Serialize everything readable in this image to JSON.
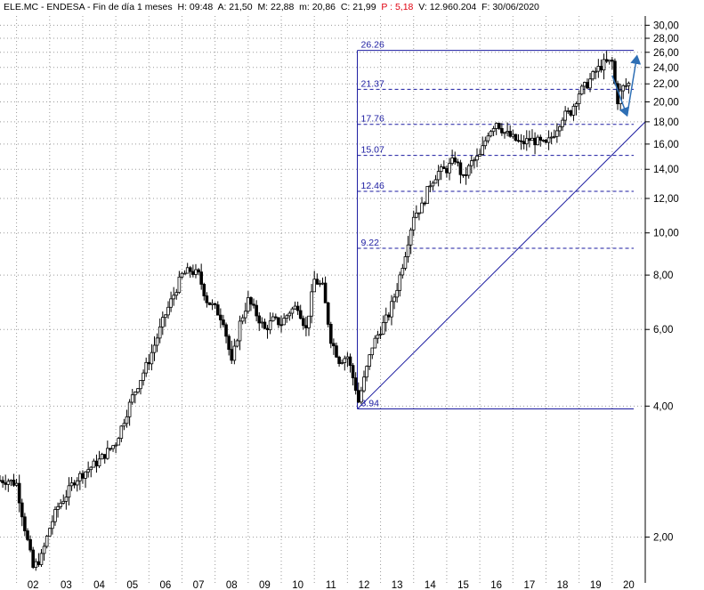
{
  "header": {
    "ticker": "ELE.MC - ENDESA - Fin de día 1 meses",
    "h": "H: 09:48",
    "a": "A: 21,50",
    "m": "M: 22,88",
    "mn": "m: 20,86",
    "c": "C: 21,99",
    "p": "P : 5,18",
    "v": "V: 12.960.204",
    "f": "F: 30/06/2020"
  },
  "colors": {
    "candle": "#000000",
    "drawing": "#1a1aa0",
    "arrow": "#2e6fb5",
    "grid": "#9a9a9a",
    "change_text": "#e0000f"
  },
  "chart_data": {
    "type": "candlestick",
    "title": "",
    "xlabel": "",
    "ylabel": "",
    "y_scale": "log",
    "ylim": [
      1.57,
      31.5
    ],
    "xlim": [
      2001.5,
      2021.0
    ],
    "x_tick_labels": [
      "02",
      "03",
      "04",
      "05",
      "06",
      "07",
      "08",
      "09",
      "10",
      "11",
      "12",
      "13",
      "14",
      "15",
      "16",
      "17",
      "18",
      "19",
      "20"
    ],
    "y_tick_labels": [
      "2,00",
      "4,00",
      "6,00",
      "8,00",
      "10,00",
      "12,00",
      "14,00",
      "16,00",
      "18,00",
      "20,00",
      "22,00",
      "24,00",
      "26,00",
      "28,00",
      "30,00"
    ],
    "y_tick_values": [
      2,
      4,
      6,
      8,
      10,
      12,
      14,
      16,
      18,
      20,
      22,
      24,
      26,
      28,
      30
    ],
    "grid": true,
    "fibonacci_levels": {
      "start_year": 2012.3,
      "end_year": 2020.65,
      "levels": [
        {
          "label": "26.26",
          "value": 26.26,
          "style": "solid"
        },
        {
          "label": "21.37",
          "value": 21.37,
          "style": "dashed"
        },
        {
          "label": "17.76",
          "value": 17.76,
          "style": "dashed"
        },
        {
          "label": "15.07",
          "value": 15.07,
          "style": "dashed"
        },
        {
          "label": "12.46",
          "value": 12.46,
          "style": "dashed"
        },
        {
          "label": "9.22",
          "value": 9.22,
          "style": "dashed"
        },
        {
          "label": "3.94",
          "value": 3.94,
          "style": "solid"
        }
      ]
    },
    "trendline": {
      "x": [
        2012.3,
        2021.0
      ],
      "y": [
        3.94,
        18.0
      ]
    },
    "forecast_arrows": [
      {
        "x": [
          2020.0,
          2020.45
        ],
        "y": [
          23.0,
          18.6
        ]
      },
      {
        "x": [
          2020.45,
          2020.75
        ],
        "y": [
          18.6,
          25.5
        ]
      }
    ],
    "series": [
      {
        "x": [
          2001.5,
          2001.75,
          2002.0,
          2002.25,
          2002.5,
          2002.75,
          2003.0,
          2003.25,
          2003.5,
          2003.75,
          2004.0,
          2004.5,
          2005.0,
          2005.5,
          2006.0,
          2006.5,
          2007.0,
          2007.25,
          2007.5,
          2007.75,
          2008.0,
          2008.25,
          2008.5,
          2008.75,
          2009.0,
          2009.25,
          2009.5,
          2009.75,
          2010.0,
          2010.25,
          2010.5,
          2010.75,
          2011.0,
          2011.25,
          2011.5,
          2011.75,
          2012.0,
          2012.25,
          2012.3,
          2012.5,
          2012.75,
          2013.0,
          2013.25,
          2013.5,
          2013.75,
          2014.0,
          2014.25,
          2014.5,
          2014.75,
          2015.0,
          2015.25,
          2015.5,
          2015.75,
          2016.0,
          2016.25,
          2016.5,
          2016.75,
          2017.0,
          2017.25,
          2017.5,
          2017.75,
          2018.0,
          2018.25,
          2018.5,
          2018.75,
          2019.0,
          2019.25,
          2019.5,
          2019.75,
          2020.0,
          2020.15,
          2020.3,
          2020.5
        ],
        "y": [
          2.7,
          2.7,
          2.65,
          2.1,
          1.7,
          1.8,
          2.1,
          2.35,
          2.5,
          2.7,
          2.8,
          3.0,
          3.3,
          4.2,
          5.1,
          6.5,
          8.0,
          8.2,
          8.0,
          7.0,
          6.7,
          6.3,
          5.0,
          6.2,
          7.0,
          6.5,
          6.0,
          6.3,
          6.2,
          6.6,
          6.8,
          6.0,
          7.8,
          7.5,
          5.7,
          5.1,
          5.2,
          4.4,
          4.0,
          4.6,
          5.5,
          6.0,
          6.5,
          7.5,
          9.0,
          11.0,
          11.5,
          13.0,
          13.8,
          14.0,
          14.8,
          13.3,
          14.5,
          15.0,
          17.0,
          18.0,
          17.0,
          16.5,
          16.0,
          16.4,
          16.2,
          15.9,
          17.0,
          18.5,
          19.0,
          21.0,
          22.0,
          23.5,
          24.5,
          24.7,
          20.0,
          21.5,
          22.0
        ]
      }
    ]
  }
}
